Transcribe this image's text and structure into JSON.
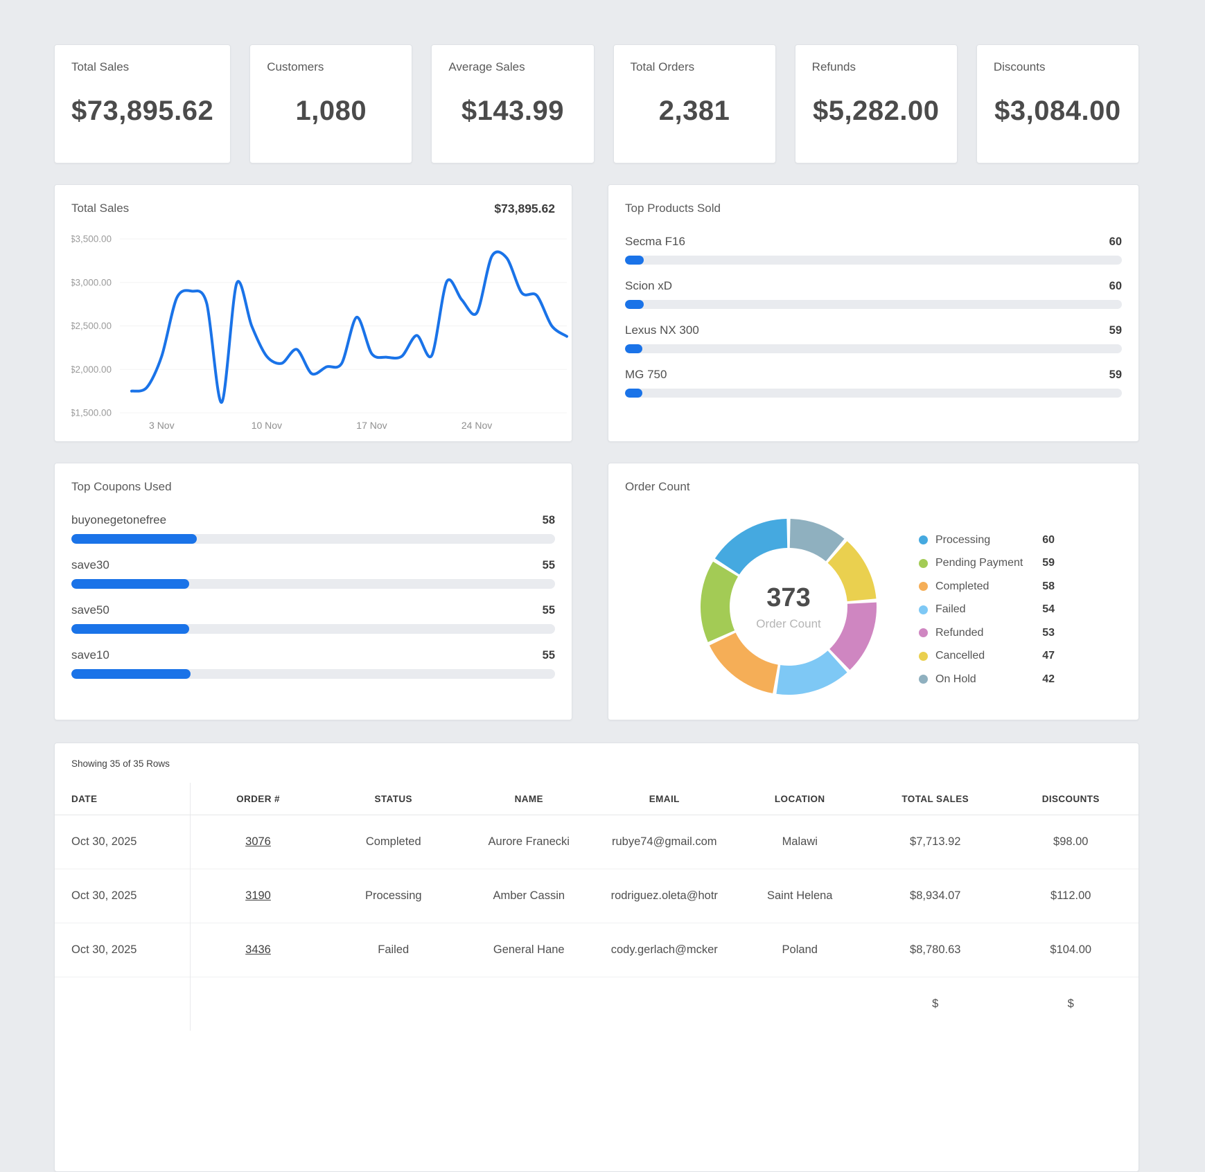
{
  "page_bg": "#e9ebee",
  "accent_color": "#1a73e8",
  "stat_cards": [
    {
      "label": "Total Sales",
      "value": "$73,895.62"
    },
    {
      "label": "Customers",
      "value": "1,080"
    },
    {
      "label": "Average Sales",
      "value": "$143.99"
    },
    {
      "label": "Total Orders",
      "value": "2,381"
    },
    {
      "label": "Refunds",
      "value": "$5,282.00"
    },
    {
      "label": "Discounts",
      "value": "$3,084.00"
    }
  ],
  "chart_data": [
    {
      "id": "total-sales-line",
      "type": "line",
      "title": "Total Sales",
      "total_label": "$73,895.62",
      "x": [
        1,
        2,
        3,
        4,
        5,
        6,
        7,
        8,
        9,
        10,
        11,
        12,
        13,
        14,
        15,
        16,
        17,
        18,
        19,
        20,
        21,
        22,
        23,
        24,
        25,
        26,
        27,
        28,
        29,
        30
      ],
      "values": [
        1750,
        1790,
        2150,
        2820,
        2900,
        2760,
        1620,
        2990,
        2500,
        2150,
        2070,
        2230,
        1950,
        2030,
        2070,
        2600,
        2180,
        2140,
        2150,
        2390,
        2160,
        3010,
        2800,
        2650,
        3300,
        3280,
        2880,
        2850,
        2500,
        2380
      ],
      "ylim": [
        1500,
        3500
      ],
      "y_ticks": [
        "$3,500.00",
        "$3,000.00",
        "$2,500.00",
        "$2,000.00",
        "$1,500.00"
      ],
      "y_tick_values": [
        3500,
        3000,
        2500,
        2000,
        1500
      ],
      "x_tick_labels": [
        "3 Nov",
        "10 Nov",
        "17 Nov",
        "24 Nov"
      ],
      "x_tick_days": [
        3,
        10,
        17,
        24
      ],
      "line_color": "#1a73e8",
      "grid": true,
      "legend_position": "none"
    },
    {
      "id": "top-products",
      "type": "bar",
      "title": "Top Products Sold",
      "categories": [
        "Secma F16",
        "Scion xD",
        "Lexus NX 300",
        "MG 750"
      ],
      "values": [
        60,
        60,
        59,
        59
      ],
      "bar_fill_pct": [
        3.7,
        3.7,
        3.5,
        3.5
      ],
      "bar_color": "#1a73e8"
    },
    {
      "id": "top-coupons",
      "type": "bar",
      "title": "Top Coupons Used",
      "categories": [
        "buyonegetonefree",
        "save30",
        "save50",
        "save10"
      ],
      "values": [
        58,
        55,
        55,
        55
      ],
      "bar_fill_pct": [
        26.0,
        24.4,
        24.4,
        24.6
      ],
      "bar_color": "#1a73e8"
    },
    {
      "id": "order-count-donut",
      "type": "pie",
      "title": "Order Count",
      "center_value": "373",
      "center_label": "Order Count",
      "labels": [
        "Processing",
        "Pending Payment",
        "Completed",
        "Failed",
        "Refunded",
        "Cancelled",
        "On Hold"
      ],
      "values": [
        60,
        59,
        58,
        54,
        53,
        47,
        42
      ],
      "colors": [
        "#45a9e0",
        "#a3cb55",
        "#f5ae57",
        "#7ec8f5",
        "#cf86c1",
        "#ead04f",
        "#8fb0bf"
      ],
      "start": "top",
      "direction": "counterclockwise",
      "legend_position": "right"
    }
  ],
  "table": {
    "summary": "Showing 35 of 35 Rows",
    "columns": [
      "DATE",
      "ORDER #",
      "STATUS",
      "NAME",
      "EMAIL",
      "LOCATION",
      "TOTAL SALES",
      "DISCOUNTS"
    ],
    "rows": [
      {
        "date": "Oct 30, 2025",
        "order": "3076",
        "status": "Completed",
        "name": "Aurore Franecki",
        "email": "rubye74@gmail.com",
        "location": "Malawi",
        "total_sales": "$7,713.92",
        "discounts": "$98.00"
      },
      {
        "date": "Oct 30, 2025",
        "order": "3190",
        "status": "Processing",
        "name": "Amber Cassin",
        "email": "rodriguez.oleta@hotr",
        "location": "Saint Helena",
        "total_sales": "$8,934.07",
        "discounts": "$112.00"
      },
      {
        "date": "Oct 30, 2025",
        "order": "3436",
        "status": "Failed",
        "name": "General Hane",
        "email": "cody.gerlach@mcker",
        "location": "Poland",
        "total_sales": "$8,780.63",
        "discounts": "$104.00"
      },
      {
        "date": "",
        "order": "",
        "status": "",
        "name": "",
        "email": "",
        "location": "",
        "total_sales": "$",
        "discounts": "$"
      }
    ]
  }
}
